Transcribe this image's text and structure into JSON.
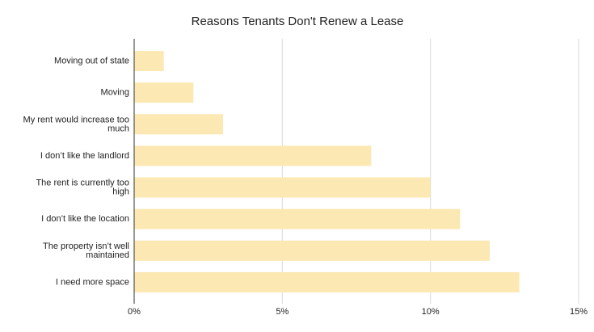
{
  "chart_data": {
    "type": "bar",
    "orientation": "horizontal",
    "title": "Reasons Tenants Don't Renew a Lease",
    "categories": [
      "Moving out of state",
      "Moving",
      "My rent would increase too much",
      "I don’t like the landlord",
      "The rent is currently too high",
      "I don’t like the location",
      "The property isn’t well maintained",
      "I need more space"
    ],
    "values": [
      1,
      2,
      3,
      8,
      10,
      11,
      12,
      13
    ],
    "color": "#fce8b2",
    "xlim": [
      0,
      15
    ],
    "xticks": [
      {
        "value": 0,
        "label": "0%"
      },
      {
        "value": 5,
        "label": "5%"
      },
      {
        "value": 10,
        "label": "10%"
      },
      {
        "value": 15,
        "label": "15%"
      }
    ],
    "grid": true
  }
}
